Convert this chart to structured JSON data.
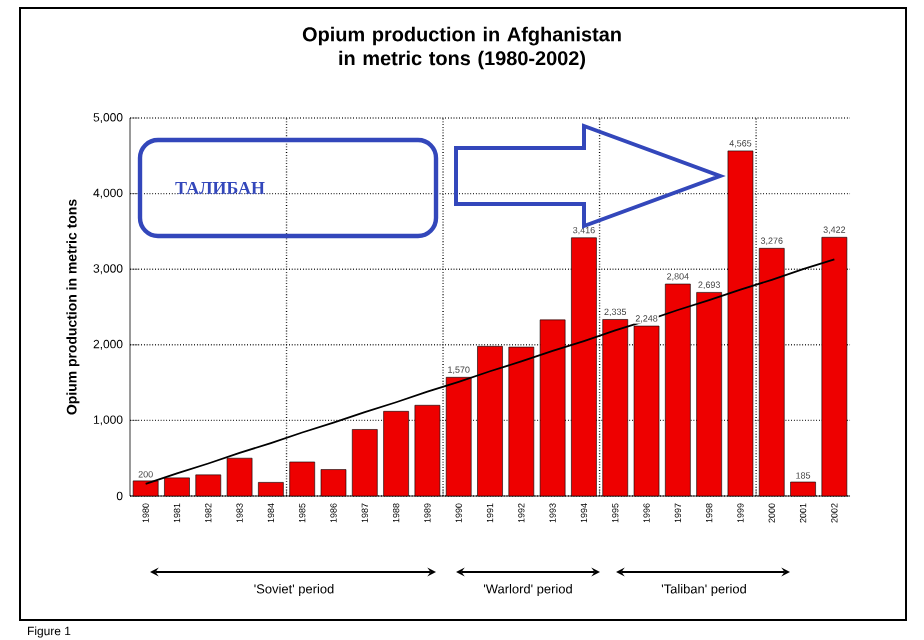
{
  "chart_data": {
    "type": "bar",
    "title": "Opium production in Afghanistan in metric tons (1980-2002)",
    "ylabel": "Opium production in metric tons",
    "categories": [
      "1980",
      "1981",
      "1982",
      "1983",
      "1984",
      "1985",
      "1986",
      "1987",
      "1988",
      "1989",
      "1990",
      "1991",
      "1992",
      "1993",
      "1994",
      "1995",
      "1996",
      "1997",
      "1998",
      "1999",
      "2000",
      "2001",
      "2002"
    ],
    "series": [
      {
        "values": [
          200,
          240,
          280,
          500,
          180,
          450,
          350,
          880,
          1120,
          1200,
          1570,
          1980,
          1970,
          2330,
          3416,
          2335,
          2248,
          2804,
          2693,
          4565,
          3276,
          185,
          3422
        ],
        "color": "#ee0000",
        "value_labels": [
          "200",
          null,
          null,
          null,
          null,
          null,
          null,
          null,
          null,
          null,
          "1,570",
          null,
          null,
          null,
          "3,416",
          "2,335",
          "2,248",
          "2,804",
          "2,693",
          "4,565",
          "3,276",
          "185",
          "3,422"
        ]
      },
      {
        "type": "line",
        "values": [
          160,
          300,
          430,
          570,
          700,
          840,
          970,
          1110,
          1240,
          1380,
          1510,
          1650,
          1780,
          1920,
          2050,
          2190,
          2320,
          2460,
          2590,
          2730,
          2860,
          3000,
          3130
        ],
        "color": "#000000"
      }
    ],
    "ylim": [
      0,
      5000
    ],
    "yticks": [
      0,
      {
        "value": 1000,
        "label": "1,000"
      },
      {
        "value": 2000,
        "label": "2,000"
      },
      {
        "value": 3000,
        "label": "3,000"
      },
      {
        "value": 4000,
        "label": "4,000"
      },
      {
        "value": 5000,
        "label": "5,000"
      }
    ],
    "grid": true,
    "marker": "none",
    "annotations": [
      "ТАЛИБАН",
      "Figure 1",
      "'Soviet' period",
      "'Warlord' period",
      "'Taliban' period"
    ]
  }
}
